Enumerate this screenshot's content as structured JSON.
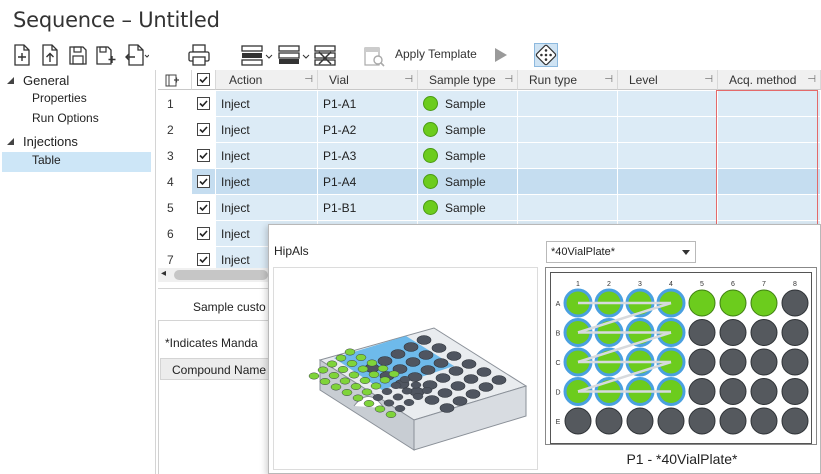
{
  "window": {
    "title": "Sequence – Untitled"
  },
  "toolbar": {
    "apply_template_label": "Apply Template",
    "icons": [
      "new-doc-icon",
      "import-doc-icon",
      "save-icon",
      "save-as-icon",
      "export-doc-icon",
      "print-icon",
      "insert-row-icon",
      "insert-row-below-icon",
      "delete-rows-icon",
      "template-icon",
      "play-icon",
      "dice-icon"
    ]
  },
  "tree": {
    "general": "General",
    "properties": "Properties",
    "run_options": "Run Options",
    "injections": "Injections",
    "table": "Table"
  },
  "grid": {
    "columns": [
      "Action",
      "Vial",
      "Sample type",
      "Run type",
      "Level",
      "Acq. method"
    ],
    "rows": [
      {
        "num": "1",
        "action": "Inject",
        "vial": "P1-A1",
        "sample_type": "Sample"
      },
      {
        "num": "2",
        "action": "Inject",
        "vial": "P1-A2",
        "sample_type": "Sample"
      },
      {
        "num": "3",
        "action": "Inject",
        "vial": "P1-A3",
        "sample_type": "Sample"
      },
      {
        "num": "4",
        "action": "Inject",
        "vial": "P1-A4",
        "sample_type": "Sample"
      },
      {
        "num": "5",
        "action": "Inject",
        "vial": "P1-B1",
        "sample_type": "Sample"
      },
      {
        "num": "6",
        "action": "Inject",
        "vial": "",
        "sample_type": ""
      },
      {
        "num": "7",
        "action": "Inject",
        "vial": "",
        "sample_type": ""
      }
    ],
    "selected_row": "4"
  },
  "bottom": {
    "sample_custom": "Sample custo",
    "mandatory": "*Indicates Manda",
    "compound_name": "Compound Name"
  },
  "popup": {
    "label": "HipAls",
    "plate_select": "*40VialPlate*",
    "caption": "P1 - *40VialPlate*",
    "col_labels": [
      "1",
      "2",
      "3",
      "4",
      "5",
      "6",
      "7",
      "8"
    ],
    "row_labels": [
      "A",
      "B",
      "C",
      "D",
      "E"
    ],
    "colors": {
      "blue_ring": "#4aa0e0",
      "green": "#6ccc1d",
      "empty": "#55595e"
    }
  }
}
